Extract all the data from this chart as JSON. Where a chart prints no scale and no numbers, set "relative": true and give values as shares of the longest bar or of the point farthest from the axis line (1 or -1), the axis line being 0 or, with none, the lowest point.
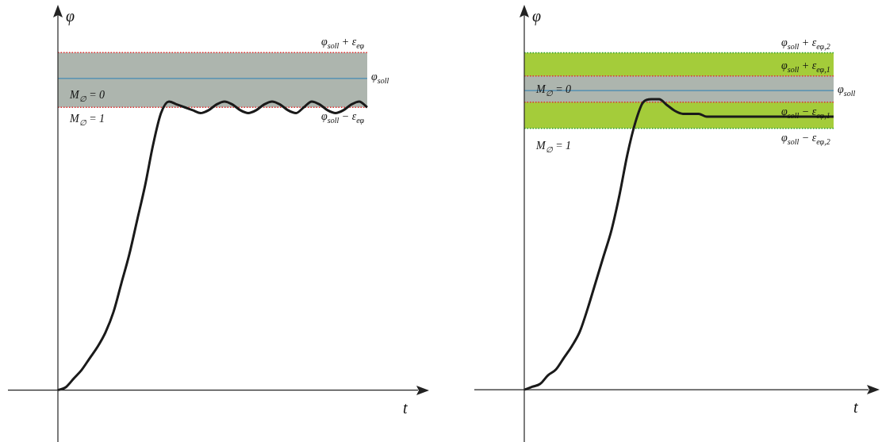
{
  "chart_data": [
    {
      "type": "line",
      "xlabel": "t",
      "ylabel": "φ",
      "relative": true,
      "marker": "none",
      "line_style": "solid",
      "categories": [
        null,
        null,
        null,
        null,
        null,
        null,
        null,
        null,
        null,
        null,
        null,
        null,
        null,
        null,
        null,
        null,
        null,
        null,
        null,
        null,
        null,
        null,
        null,
        null,
        null,
        null,
        null,
        null,
        null,
        null,
        null,
        null,
        null,
        null,
        null,
        null,
        null,
        null,
        null,
        null,
        null,
        null,
        null,
        null,
        null,
        null,
        null
      ],
      "series": [
        {
          "color": "#1a1a1a",
          "values": [
            0,
            0.01,
            0.04,
            0.07,
            0.11,
            0.15,
            0.2,
            0.27,
            0.37,
            0.47,
            0.59,
            0.71,
            0.85,
            0.96,
            1.0,
            0.99,
            0.98,
            0.97,
            0.96,
            0.97,
            0.99,
            1.0,
            0.99,
            0.97,
            0.96,
            0.97,
            0.99,
            1.0,
            0.99,
            0.97,
            0.96,
            0.98,
            1.0,
            0.99,
            0.97,
            0.96,
            0.97,
            0.99,
            1.0,
            0.98,
            null,
            null,
            null,
            null,
            null,
            null,
            null
          ]
        }
      ],
      "bands": [
        {
          "axis": "y",
          "from": 0.98,
          "to": 1.17,
          "color": "#adb5ae"
        }
      ],
      "ref_lines": [
        {
          "axis": "y",
          "value": 1.17,
          "label": "φ$_{soll}$ + ε$_{eφ}$",
          "color": "#e03030",
          "line_style": "dotted"
        },
        {
          "axis": "y",
          "value": 1.08,
          "label": "φ$_{soll}$",
          "color": "#2a7fb5",
          "line_style": "solid"
        },
        {
          "axis": "y",
          "value": 0.98,
          "label": "φ$_{soll}$ − ε$_{eφ}$",
          "color": "#e03030",
          "line_style": "dotted"
        }
      ],
      "annotations": [
        "M$_{∅}$ = 0",
        "M$_{∅}$ = 1"
      ]
    },
    {
      "type": "line",
      "xlabel": "t",
      "ylabel": "φ",
      "relative": true,
      "marker": "none",
      "line_style": "solid",
      "categories": [
        null,
        null,
        null,
        null,
        null,
        null,
        null,
        null,
        null,
        null,
        null,
        null,
        null,
        null,
        null,
        null,
        null,
        null,
        null,
        null,
        null,
        null,
        null,
        null,
        null,
        null,
        null,
        null,
        null,
        null,
        null,
        null,
        null,
        null,
        null,
        null,
        null,
        null,
        null,
        null,
        null,
        null,
        null,
        null,
        null
      ],
      "series": [
        {
          "color": "#1a1a1a",
          "values": [
            0,
            0.01,
            0.02,
            0.05,
            0.07,
            0.11,
            0.15,
            0.2,
            0.28,
            0.37,
            0.46,
            0.55,
            0.67,
            0.81,
            0.92,
            0.99,
            1.0,
            1.0,
            0.98,
            0.96,
            0.95,
            0.95,
            0.95,
            0.94,
            0.94,
            0.94,
            0.94,
            0.94,
            0.94,
            0.94,
            0.94,
            0.94,
            0.94,
            0.94,
            0.94,
            0.94,
            0.94,
            0.94,
            0.94,
            0.94,
            null,
            null,
            null,
            null,
            null
          ]
        }
      ],
      "bands": [
        {
          "axis": "y",
          "from": 0.9,
          "to": 1.16,
          "color": "#a4cc3a"
        },
        {
          "axis": "y",
          "from": 0.99,
          "to": 1.08,
          "color": "#adb5ae"
        }
      ],
      "ref_lines": [
        {
          "axis": "y",
          "value": 1.16,
          "label": "φ$_{soll}$ + ε$_{eφ,2}$",
          "color": "#2ca02c",
          "line_style": "dotted"
        },
        {
          "axis": "y",
          "value": 1.08,
          "label": "φ$_{soll}$ + ε$_{eφ,1}$",
          "color": "#e03030",
          "line_style": "dotted"
        },
        {
          "axis": "y",
          "value": 1.03,
          "label": "φ$_{soll}$",
          "color": "#2a7fb5",
          "line_style": "solid"
        },
        {
          "axis": "y",
          "value": 0.99,
          "label": "φ$_{soll}$ − ε$_{eφ,1}$",
          "color": "#e03030",
          "line_style": "dotted"
        },
        {
          "axis": "y",
          "value": 0.9,
          "label": "φ$_{soll}$ − ε$_{eφ,2}$",
          "color": "#2ca02c",
          "line_style": "dotted"
        }
      ],
      "annotations": [
        "M$_{∅}$ = 0",
        "M$_{∅}$ = 1"
      ]
    }
  ]
}
